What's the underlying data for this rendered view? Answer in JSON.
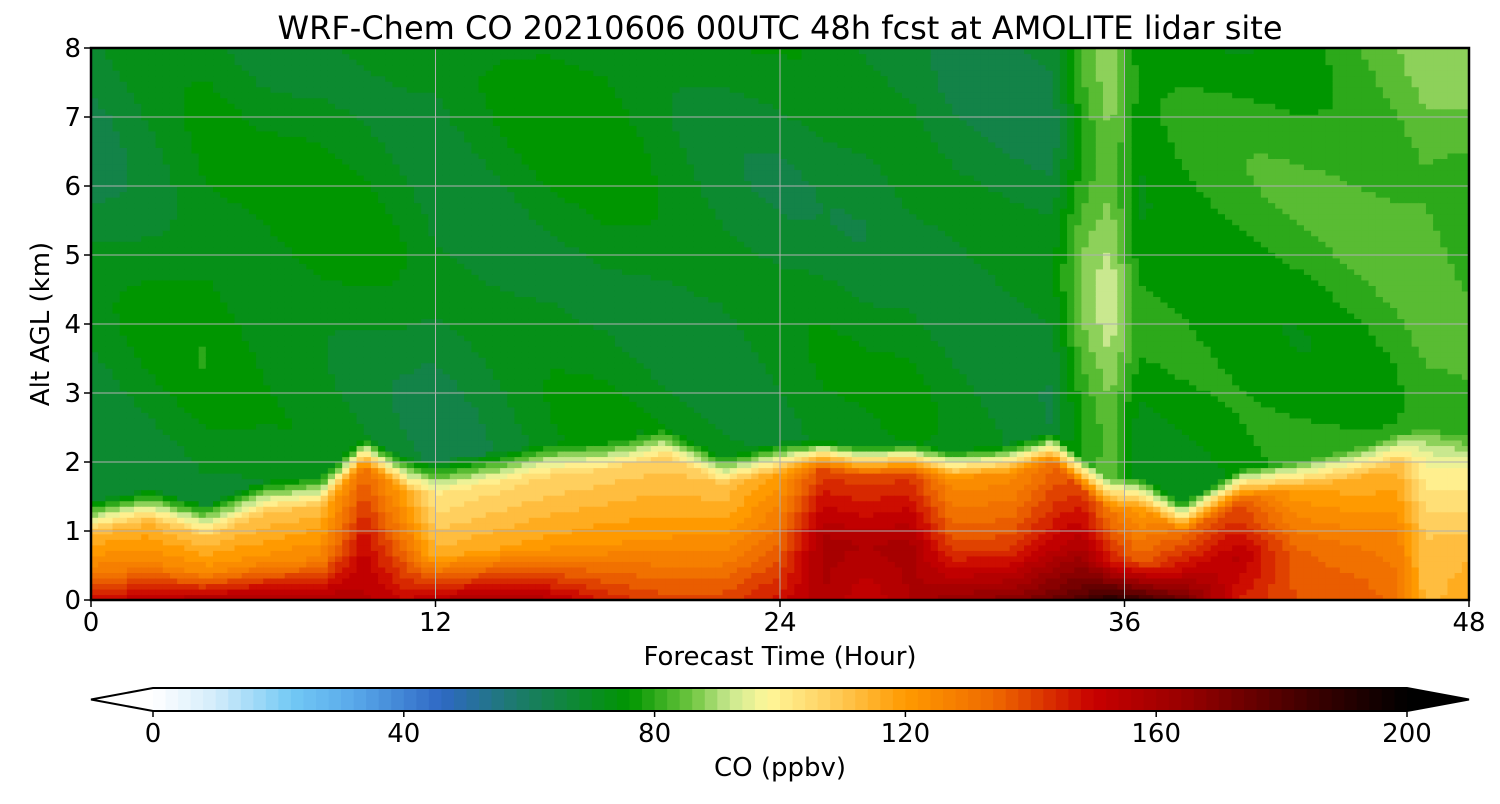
{
  "chart_data": {
    "type": "heatmap",
    "title": "WRF-Chem CO  20210606 00UTC 48h fcst at AMOLITE lidar site",
    "xlabel": "Forecast Time (Hour)",
    "ylabel": "Alt AGL (km)",
    "xlim": [
      0,
      48
    ],
    "ylim": [
      0,
      8
    ],
    "x_ticks": [
      0,
      12,
      24,
      36,
      48
    ],
    "y_ticks": [
      0,
      1,
      2,
      3,
      4,
      5,
      6,
      7,
      8
    ],
    "grid": true,
    "x": [
      0,
      2,
      4,
      6,
      8,
      9.5,
      11,
      12,
      14,
      16,
      18,
      20,
      22,
      24,
      25.5,
      27,
      28.5,
      30,
      32,
      33.5,
      34.5,
      35.5,
      36.5,
      38,
      40,
      42,
      44,
      45.5,
      46.5,
      48
    ],
    "boundary_layer_top_km": [
      1.25,
      1.45,
      1.15,
      1.6,
      1.7,
      2.4,
      2.0,
      1.95,
      2.1,
      2.3,
      2.35,
      2.6,
      2.1,
      2.3,
      2.35,
      2.25,
      2.3,
      2.2,
      2.3,
      2.5,
      2.0,
      1.6,
      1.7,
      1.2,
      1.8,
      2.0,
      2.2,
      2.45,
      2.55,
      2.4
    ],
    "co_surface_ppbv": [
      148,
      155,
      158,
      160,
      160,
      155,
      150,
      155,
      160,
      155,
      145,
      140,
      140,
      148,
      158,
      150,
      158,
      165,
      168,
      175,
      180,
      190,
      185,
      175,
      145,
      138,
      138,
      132,
      112,
      118
    ],
    "co_mid_bl_ppbv": [
      128,
      128,
      125,
      124,
      127,
      150,
      132,
      115,
      118,
      120,
      122,
      122,
      125,
      135,
      160,
      158,
      160,
      140,
      140,
      150,
      160,
      148,
      135,
      150,
      155,
      135,
      130,
      128,
      110,
      112
    ],
    "co_free_troposphere_ppbv": [
      68,
      71,
      74,
      72,
      73,
      72,
      70,
      68,
      70,
      73,
      74,
      72,
      70,
      70,
      71,
      70,
      71,
      69,
      68,
      68,
      82,
      88,
      75,
      76,
      77,
      78,
      80,
      82,
      84,
      82
    ],
    "colorbar": {
      "label": "CO  (ppbv)",
      "min": 0,
      "max": 200,
      "ticks": [
        0,
        40,
        80,
        120,
        160,
        200
      ],
      "extend": "both",
      "stops": [
        {
          "value": 0,
          "color": "#ffffff"
        },
        {
          "value": 10,
          "color": "#d2ecfa"
        },
        {
          "value": 22,
          "color": "#73c9f5"
        },
        {
          "value": 32,
          "color": "#59a9ea"
        },
        {
          "value": 46,
          "color": "#2f68c4"
        },
        {
          "value": 58,
          "color": "#1c7a6c"
        },
        {
          "value": 76,
          "color": "#009600"
        },
        {
          "value": 86,
          "color": "#6fc640"
        },
        {
          "value": 92,
          "color": "#c9e88f"
        },
        {
          "value": 98,
          "color": "#fff79a"
        },
        {
          "value": 108,
          "color": "#ffcf5e"
        },
        {
          "value": 120,
          "color": "#ff9a00"
        },
        {
          "value": 134,
          "color": "#ef6a00"
        },
        {
          "value": 150,
          "color": "#c80000"
        },
        {
          "value": 165,
          "color": "#960000"
        },
        {
          "value": 185,
          "color": "#3c0000"
        },
        {
          "value": 200,
          "color": "#000000"
        }
      ]
    }
  }
}
